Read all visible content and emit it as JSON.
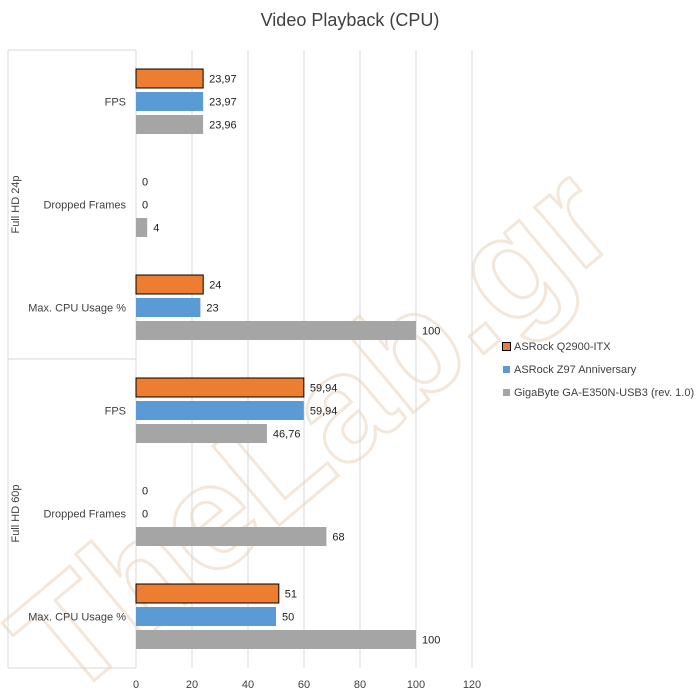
{
  "chart_data": {
    "type": "bar",
    "orientation": "horizontal",
    "title": "Video Playback (CPU)",
    "xlim": [
      0,
      120
    ],
    "xticks": [
      0,
      20,
      40,
      60,
      80,
      100,
      120
    ],
    "grid": "vertical",
    "legend_position": "right",
    "watermark": "TheLab.gr",
    "groups": [
      {
        "label": "Full HD 24p",
        "categories": [
          "FPS",
          "Dropped Frames",
          "Max. CPU Usage %"
        ],
        "series": [
          {
            "name": "ASRock Q2900-ITX",
            "values": [
              23.97,
              0,
              24
            ],
            "labels": [
              "23,97",
              "0",
              "24"
            ]
          },
          {
            "name": "ASRock Z97 Anniversary",
            "values": [
              23.97,
              0,
              23
            ],
            "labels": [
              "23,97",
              "0",
              "23"
            ]
          },
          {
            "name": "GigaByte GA-E350N-USB3 (rev. 1.0)",
            "values": [
              23.96,
              4,
              100
            ],
            "labels": [
              "23,96",
              "4",
              "100"
            ]
          }
        ]
      },
      {
        "label": "Full HD 60p",
        "categories": [
          "FPS",
          "Dropped Frames",
          "Max. CPU Usage %"
        ],
        "series": [
          {
            "name": "ASRock Q2900-ITX",
            "values": [
              59.94,
              0,
              51
            ],
            "labels": [
              "59,94",
              "0",
              "51"
            ]
          },
          {
            "name": "ASRock Z97 Anniversary",
            "values": [
              59.94,
              0,
              50
            ],
            "labels": [
              "59,94",
              "0",
              "50"
            ]
          },
          {
            "name": "GigaByte GA-E350N-USB3 (rev. 1.0)",
            "values": [
              46.76,
              68,
              100
            ],
            "labels": [
              "46,76",
              "68",
              "100"
            ]
          }
        ]
      }
    ],
    "series_colors": [
      "#ED7D31",
      "#5B9BD5",
      "#A5A5A5"
    ],
    "outlined_series": 0
  }
}
